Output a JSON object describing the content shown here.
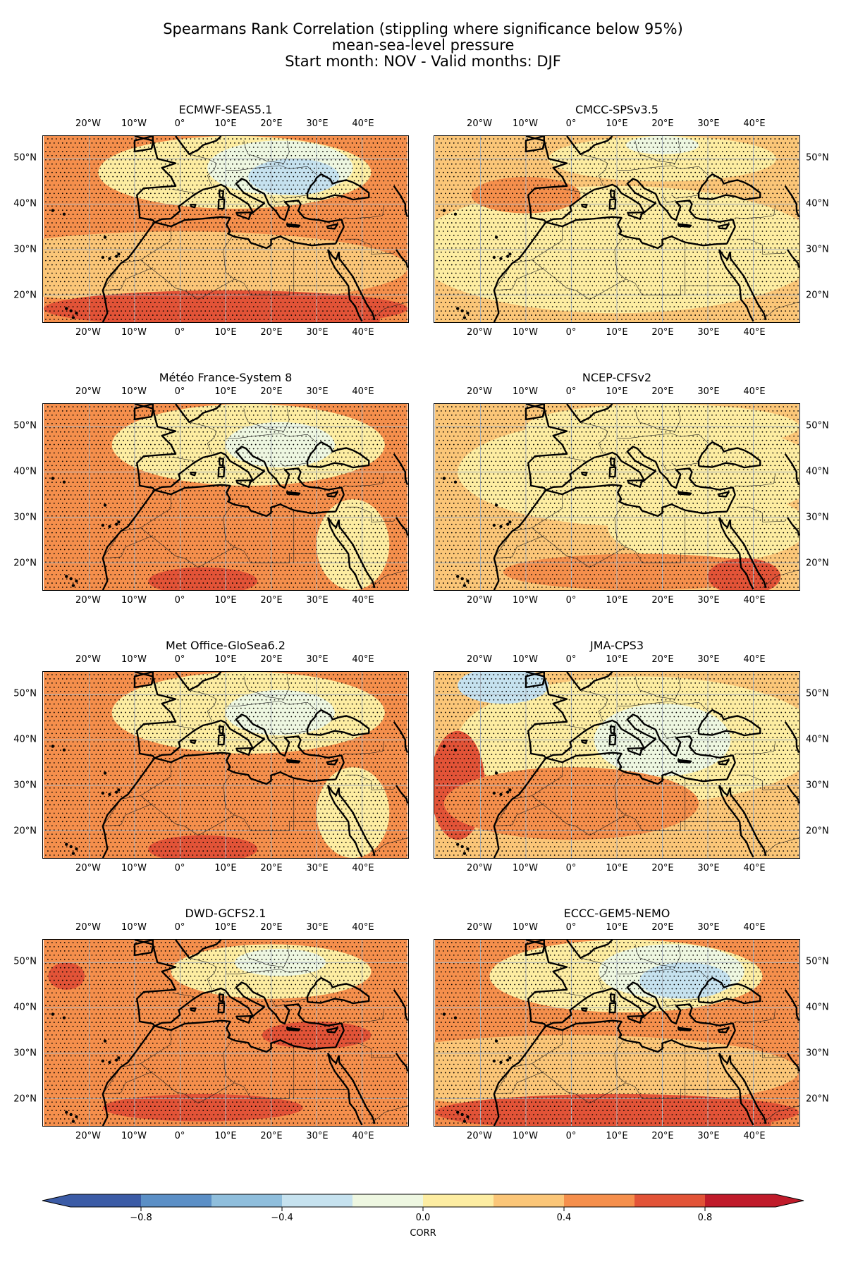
{
  "title": {
    "line1": "Spearmans Rank Correlation (stippling where significance below 95%)",
    "line2": "mean-sea-level pressure",
    "line3": "Start month: NOV - Valid months: DJF"
  },
  "axes": {
    "lon_labels": [
      "20°W",
      "10°W",
      "0°",
      "10°E",
      "20°E",
      "30°E",
      "40°E"
    ],
    "lat_labels": [
      "50°N",
      "40°N",
      "30°N",
      "20°N"
    ]
  },
  "panels": [
    {
      "title": "ECMWF-SEAS5.1",
      "pattern": "cool-europe"
    },
    {
      "title": "CMCC-SPSv3.5",
      "pattern": "mild"
    },
    {
      "title": "Météo France-System 8",
      "pattern": "warm"
    },
    {
      "title": "NCEP-CFSv2",
      "pattern": "mild-south"
    },
    {
      "title": "Met Office-GloSea6.2",
      "pattern": "warm"
    },
    {
      "title": "JMA-CPS3",
      "pattern": "cool-north"
    },
    {
      "title": "DWD-GCFS2.1",
      "pattern": "hot"
    },
    {
      "title": "ECCC-GEM5-NEMO",
      "pattern": "cool-europe"
    }
  ],
  "colorbar": {
    "label": "CORR",
    "tick_labels": [
      "−0.8",
      "−0.4",
      "0.0",
      "0.4",
      "0.8"
    ],
    "colors": [
      "#3b5ba6",
      "#5b8fc6",
      "#8fbedc",
      "#c6e2ef",
      "#eef7e1",
      "#fdeda2",
      "#fbc678",
      "#f58f4c",
      "#e25337",
      "#c01b2a"
    ]
  }
}
